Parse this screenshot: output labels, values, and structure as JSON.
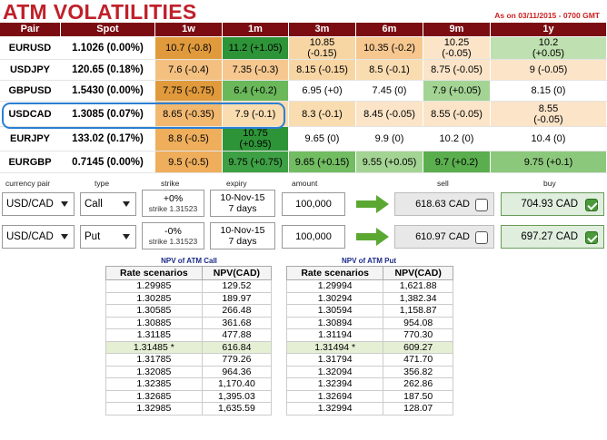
{
  "header": {
    "title": "ATM VOLATILITIES",
    "as_of": "As on 03/11/2015 - 0700 GMT"
  },
  "columns": [
    "Pair",
    "Spot",
    "1w",
    "1m",
    "3m",
    "6m",
    "9m",
    "1y"
  ],
  "rows": [
    {
      "pair": "EURUSD",
      "spot": "1.1026 (0.00%)",
      "cells": [
        {
          "t": "10.7 (-0.8)",
          "c": "#e09a3c"
        },
        {
          "t": "11.2 (+1.05)",
          "c": "#2e9438"
        },
        {
          "t": "10.85\n(-0.15)",
          "c": "#f8d6a4"
        },
        {
          "t": "10.35 (-0.2)",
          "c": "#f6c890"
        },
        {
          "t": "10.25\n(-0.05)",
          "c": "#fbe4c8"
        },
        {
          "t": "10.2\n(+0.05)",
          "c": "#bfe0b0"
        }
      ]
    },
    {
      "pair": "USDJPY",
      "spot": "120.65 (0.18%)",
      "cells": [
        {
          "t": "7.6 (-0.4)",
          "c": "#f4c080"
        },
        {
          "t": "7.35 (-0.3)",
          "c": "#f6c890"
        },
        {
          "t": "8.15 (-0.15)",
          "c": "#f8d6a4"
        },
        {
          "t": "8.5 (-0.1)",
          "c": "#f9dcb0"
        },
        {
          "t": "8.75 (-0.05)",
          "c": "#fbe4c8"
        },
        {
          "t": "9 (-0.05)",
          "c": "#fbe4c8"
        }
      ]
    },
    {
      "pair": "GBPUSD",
      "spot": "1.5430 (0.00%)",
      "cells": [
        {
          "t": "7.75 (-0.75)",
          "c": "#e09a3c"
        },
        {
          "t": "6.4 (+0.2)",
          "c": "#6ab85a"
        },
        {
          "t": "6.95 (+0)",
          "c": "#ffffff"
        },
        {
          "t": "7.45 (0)",
          "c": "#ffffff"
        },
        {
          "t": "7.9 (+0.05)",
          "c": "#a4d494"
        },
        {
          "t": "8.15 (0)",
          "c": "#ffffff"
        }
      ]
    },
    {
      "pair": "USDCAD",
      "spot": "1.3085 (0.07%)",
      "cells": [
        {
          "t": "8.65 (-0.35)",
          "c": "#f2b870"
        },
        {
          "t": "7.9 (-0.1)",
          "c": "#f9dcb0"
        },
        {
          "t": "8.3 (-0.1)",
          "c": "#f9dcb0"
        },
        {
          "t": "8.45 (-0.05)",
          "c": "#fbe4c8"
        },
        {
          "t": "8.55 (-0.05)",
          "c": "#fbe4c8"
        },
        {
          "t": "8.55\n(-0.05)",
          "c": "#fbe4c8"
        }
      ]
    },
    {
      "pair": "EURJPY",
      "spot": "133.02 (0.17%)",
      "cells": [
        {
          "t": "8.8 (-0.5)",
          "c": "#eeae5c"
        },
        {
          "t": "10.75\n(+0.95)",
          "c": "#2e9438"
        },
        {
          "t": "9.65 (0)",
          "c": "#ffffff"
        },
        {
          "t": "9.9 (0)",
          "c": "#ffffff"
        },
        {
          "t": "10.2 (0)",
          "c": "#ffffff"
        },
        {
          "t": "10.4 (0)",
          "c": "#ffffff"
        }
      ]
    },
    {
      "pair": "EURGBP",
      "spot": "0.7145 (0.00%)",
      "cells": [
        {
          "t": "9.5 (-0.5)",
          "c": "#eeae5c"
        },
        {
          "t": "9.75 (+0.75)",
          "c": "#3ea044"
        },
        {
          "t": "9.65 (+0.15)",
          "c": "#72bc62"
        },
        {
          "t": "9.55 (+0.05)",
          "c": "#a4d494"
        },
        {
          "t": "9.7 (+0.2)",
          "c": "#5aae4e"
        },
        {
          "t": "9.75 (+0.1)",
          "c": "#8cc87c"
        }
      ]
    }
  ],
  "trade_labels": {
    "currency_pair": "currency pair",
    "type": "type",
    "strike": "strike",
    "expiry": "expiry",
    "amount": "amount",
    "sell": "sell",
    "buy": "buy"
  },
  "trades": [
    {
      "pair": "USD/CAD",
      "type": "Call",
      "strike_pct": "+0%",
      "strike": "strike 1.31523",
      "expiry_date": "10-Nov-15",
      "expiry_days": "7 days",
      "amount": "100,000",
      "sell": "618.63 CAD",
      "buy": "704.93 CAD",
      "sell_checked": false,
      "buy_checked": true
    },
    {
      "pair": "USD/CAD",
      "type": "Put",
      "strike_pct": "-0%",
      "strike": "strike 1.31523",
      "expiry_date": "10-Nov-15",
      "expiry_days": "7 days",
      "amount": "100,000",
      "sell": "610.97 CAD",
      "buy": "697.27 CAD",
      "sell_checked": false,
      "buy_checked": true
    }
  ],
  "npv_call": {
    "title": "NPV of ATM Call",
    "headers": [
      "Rate scenarios",
      "NPV(CAD)"
    ],
    "rows": [
      [
        "1.29985",
        "129.52"
      ],
      [
        "1.30285",
        "189.97"
      ],
      [
        "1.30585",
        "266.48"
      ],
      [
        "1.30885",
        "361.68"
      ],
      [
        "1.31185",
        "477.88"
      ],
      [
        "1.31485 *",
        "616.84"
      ],
      [
        "1.31785",
        "779.26"
      ],
      [
        "1.32085",
        "964.36"
      ],
      [
        "1.32385",
        "1,170.40"
      ],
      [
        "1.32685",
        "1,395.03"
      ],
      [
        "1.32985",
        "1,635.59"
      ]
    ]
  },
  "npv_put": {
    "title": "NPV of ATM Put",
    "headers": [
      "Rate scenarios",
      "NPV(CAD)"
    ],
    "rows": [
      [
        "1.29994",
        "1,621.88"
      ],
      [
        "1.30294",
        "1,382.34"
      ],
      [
        "1.30594",
        "1,158.87"
      ],
      [
        "1.30894",
        "954.08"
      ],
      [
        "1.31194",
        "770.30"
      ],
      [
        "1.31494 *",
        "609.27"
      ],
      [
        "1.31794",
        "471.70"
      ],
      [
        "1.32094",
        "356.82"
      ],
      [
        "1.32394",
        "262.86"
      ],
      [
        "1.32694",
        "187.50"
      ],
      [
        "1.32994",
        "128.07"
      ]
    ]
  },
  "colors": {
    "accent": "#c0202a",
    "header_bg": "#7a0c12",
    "highlight": "#2a7fd4",
    "arrow": "#5aa832"
  }
}
